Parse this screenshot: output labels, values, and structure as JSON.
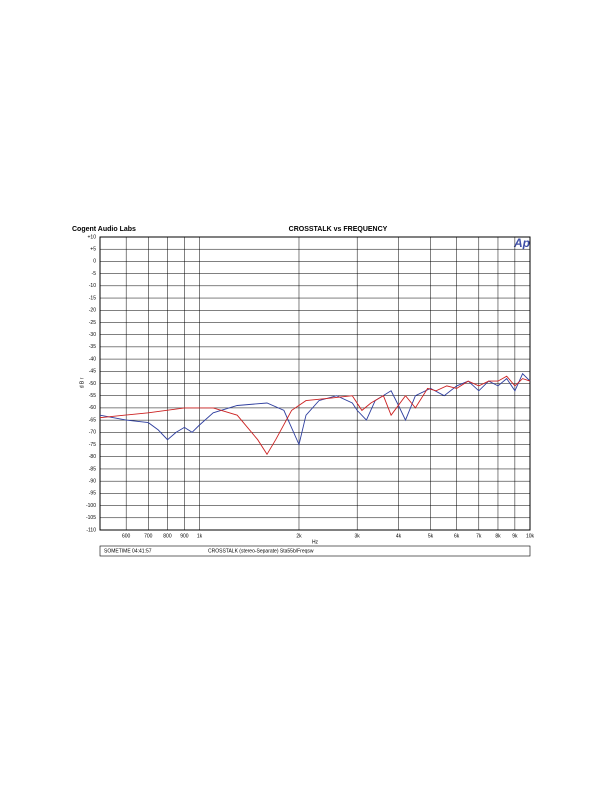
{
  "chart_data": {
    "type": "line",
    "header_left": "Cogent Audio Labs",
    "title": "CROSSTALK vs FREQUENCY",
    "logo": "Ap",
    "y_label": "d B r",
    "x_label": "Hz",
    "footer_left": "SOMETIME 04:41:57",
    "footer_center": "CROSSTALK (stereo-Separate) Sta55b/Freqsw",
    "xscale": "log",
    "grid": true,
    "xlim": [
      500,
      10000
    ],
    "ylim": [
      -110,
      10
    ],
    "xticks": [
      600,
      700,
      800,
      900,
      {
        "value": 1000,
        "label": "1k"
      },
      {
        "value": 2000,
        "label": "2k"
      },
      {
        "value": 3000,
        "label": "3k"
      },
      {
        "value": 4000,
        "label": "4k"
      },
      {
        "value": 5000,
        "label": "5k"
      },
      {
        "value": 6000,
        "label": "6k"
      },
      {
        "value": 7000,
        "label": "7k"
      },
      {
        "value": 8000,
        "label": "8k"
      },
      {
        "value": 9000,
        "label": "9k"
      },
      {
        "value": 10000,
        "label": "10k"
      }
    ],
    "yticks": [
      {
        "value": 10,
        "label": "+10"
      },
      {
        "value": 5,
        "label": "+5"
      },
      0,
      -5,
      -10,
      -15,
      -20,
      -25,
      -30,
      -35,
      -40,
      -45,
      -50,
      -55,
      -60,
      -65,
      -70,
      -75,
      -80,
      -85,
      -90,
      -95,
      -100,
      -105,
      -110
    ],
    "series": [
      {
        "color": "#2f3f9f",
        "x": [
          500,
          600,
          700,
          750,
          800,
          850,
          900,
          950,
          1000,
          1100,
          1300,
          1600,
          1800,
          2000,
          2100,
          2300,
          2600,
          2900,
          3000,
          3200,
          3400,
          3800,
          4000,
          4200,
          4500,
          5000,
          5500,
          6000,
          6500,
          7000,
          7500,
          8000,
          8500,
          9000,
          9500,
          10000
        ],
        "values": [
          -63,
          -65,
          -66,
          -69,
          -73,
          -70,
          -68,
          -70,
          -67,
          -62,
          -59,
          -58,
          -61,
          -75,
          -63,
          -57,
          -55,
          -58,
          -61,
          -65,
          -57,
          -53,
          -59,
          -65,
          -55,
          -52,
          -55,
          -51,
          -49,
          -53,
          -49,
          -51,
          -48,
          -53,
          -46,
          -49
        ]
      },
      {
        "color": "#cc2222",
        "x": [
          500,
          700,
          900,
          1100,
          1300,
          1500,
          1600,
          1700,
          1900,
          2100,
          2500,
          2900,
          3100,
          3300,
          3600,
          3800,
          4200,
          4500,
          4900,
          5200,
          5600,
          6000,
          6500,
          7000,
          7500,
          8000,
          8500,
          9000,
          9500,
          10000
        ],
        "values": [
          -64,
          -62,
          -60,
          -60,
          -63,
          -73,
          -79,
          -73,
          -61,
          -57,
          -56,
          -55,
          -61,
          -58,
          -55,
          -63,
          -55,
          -60,
          -52,
          -53,
          -51,
          -52,
          -49,
          -51,
          -49,
          -49,
          -47,
          -51,
          -48,
          -49
        ]
      }
    ]
  }
}
